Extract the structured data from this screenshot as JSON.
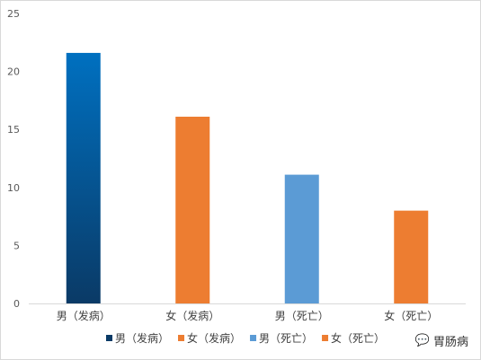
{
  "chart_data": {
    "type": "bar",
    "categories": [
      "男（发病）",
      "女（发病）",
      "男（死亡）",
      "女（死亡）"
    ],
    "values": [
      21.6,
      16.1,
      11.1,
      8.0
    ],
    "colors": [
      "#0b5fa5",
      "#ed7d31",
      "#5b9bd5",
      "#ed7d31"
    ],
    "gradient_first_bar": [
      "#0070c0",
      "#0a3a66"
    ],
    "ylim": [
      0,
      25
    ],
    "yticks": [
      0,
      5,
      10,
      15,
      20,
      25
    ],
    "title": "",
    "xlabel": "",
    "ylabel": "",
    "grid": false,
    "legend": {
      "position": "bottom",
      "entries": [
        "男（发病）",
        "女（发病）",
        "男（死亡）",
        "女（死亡）"
      ]
    }
  },
  "watermark": {
    "icon": "wechat-icon",
    "text": "胃肠病"
  }
}
